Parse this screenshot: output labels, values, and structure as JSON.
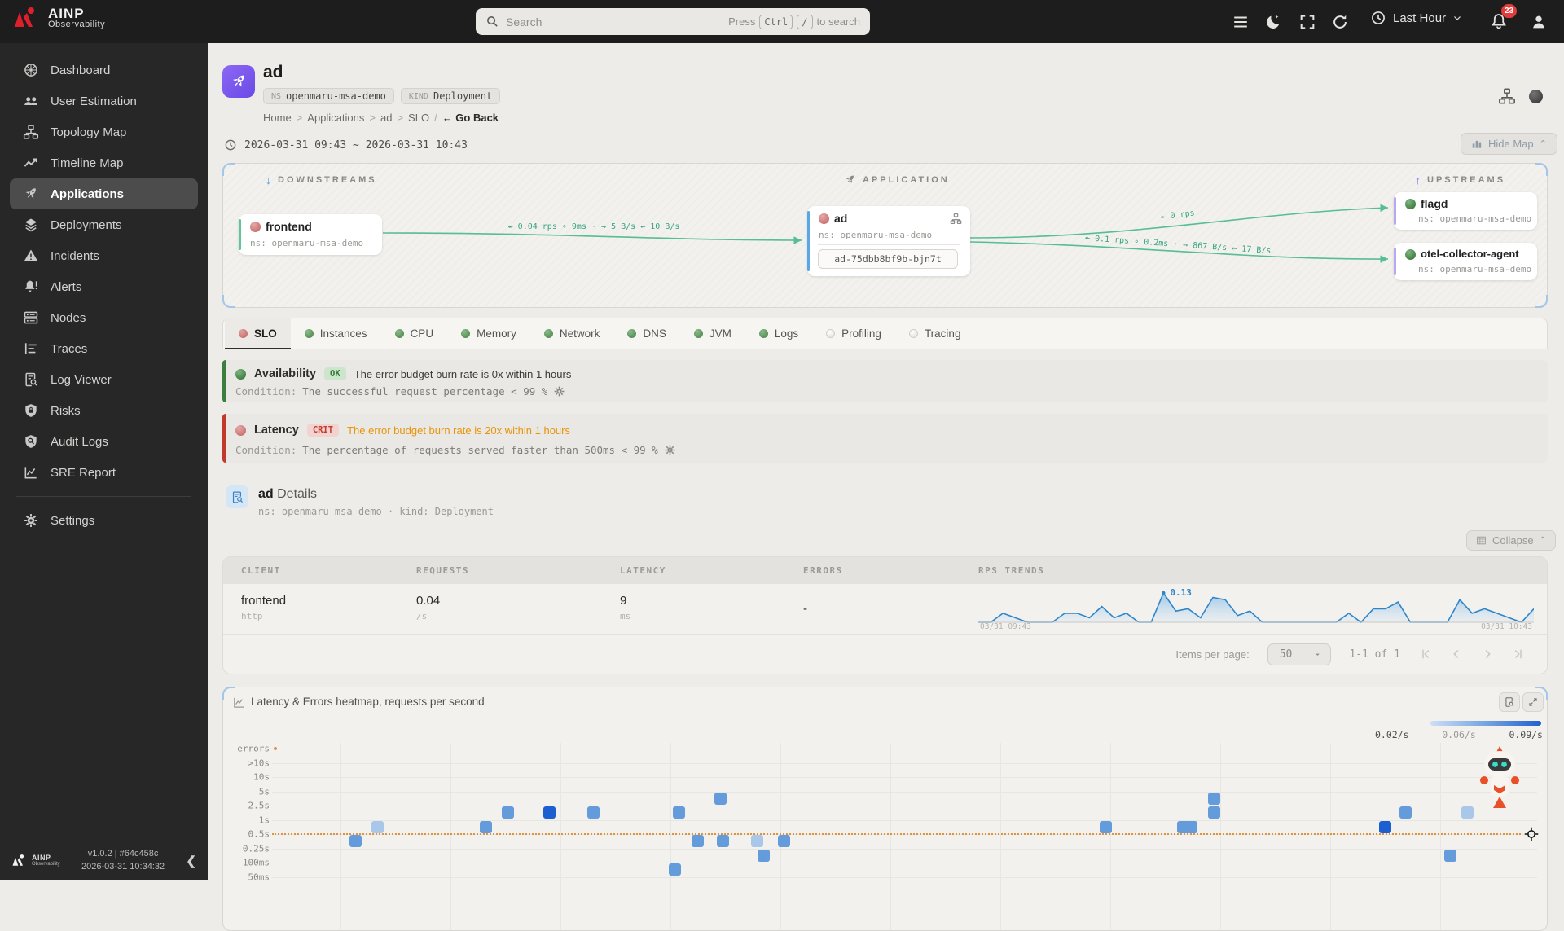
{
  "topbar": {
    "brand_line1": "AINP",
    "brand_line2": "Observability",
    "search_placeholder": "Search",
    "search_hint_prefix": "Press",
    "search_key1": "Ctrl",
    "search_key2": "/",
    "search_hint_suffix": "to search",
    "time_range_label": "Last Hour",
    "notification_count": "23"
  },
  "sidebar": {
    "items": [
      {
        "label": "Dashboard",
        "icon": "dashboard",
        "active": false
      },
      {
        "label": "User Estimation",
        "icon": "users",
        "active": false
      },
      {
        "label": "Topology Map",
        "icon": "sitemap",
        "active": false
      },
      {
        "label": "Timeline Map",
        "icon": "trend",
        "active": false
      },
      {
        "label": "Applications",
        "icon": "rocket",
        "active": true
      },
      {
        "label": "Deployments",
        "icon": "layers",
        "active": false
      },
      {
        "label": "Incidents",
        "icon": "warning",
        "active": false
      },
      {
        "label": "Alerts",
        "icon": "bellalert",
        "active": false
      },
      {
        "label": "Nodes",
        "icon": "server",
        "active": false
      },
      {
        "label": "Traces",
        "icon": "traces",
        "active": false
      },
      {
        "label": "Log Viewer",
        "icon": "docsearch",
        "active": false
      },
      {
        "label": "Risks",
        "icon": "shieldlock",
        "active": false
      },
      {
        "label": "Audit Logs",
        "icon": "shieldsearch",
        "active": false
      },
      {
        "label": "SRE Report",
        "icon": "chart",
        "active": false
      },
      {
        "label": "Settings",
        "icon": "gear",
        "active": false,
        "divider_before": true
      }
    ],
    "footer": {
      "brand_line1": "AINP",
      "brand_line2": "Observability",
      "version": "v1.0.2 | #64c458c",
      "timestamp": "2026-03-31 10:34:32"
    }
  },
  "header": {
    "title": "ad",
    "ns_label": "NS",
    "ns_value": "openmaru-msa-demo",
    "kind_label": "KIND",
    "kind_value": "Deployment",
    "breadcrumb": [
      "Home",
      "Applications",
      "ad",
      "SLO"
    ],
    "go_back": "← Go Back",
    "date_range": "2026-03-31 09:43 ~ 2026-03-31 10:43",
    "hide_map_label": "Hide Map"
  },
  "topology": {
    "downstreams_label": "DOWNSTREAMS",
    "application_label": "APPLICATION",
    "upstreams_label": "UPSTREAMS",
    "nodes": {
      "frontend": {
        "name": "frontend",
        "ns": "ns: openmaru-msa-demo",
        "status": "red"
      },
      "ad": {
        "name": "ad",
        "ns": "ns: openmaru-msa-demo",
        "pod": "ad-75dbb8bf9b-bjn7t",
        "status": "red"
      },
      "flagd": {
        "name": "flagd",
        "ns": "ns: openmaru-msa-demo",
        "status": "green"
      },
      "otel": {
        "name": "otel-collector-agent",
        "ns": "ns: openmaru-msa-demo",
        "status": "green"
      }
    },
    "edges": {
      "frontend_ad": "↞ 0.04 rps ∘ 9ms · → 5 B/s ← 10 B/s",
      "ad_flagd": "↞ 0 rps",
      "ad_otel": "↞ 0.1 rps ∘ 0.2ms · → 867 B/s ← 17 B/s"
    }
  },
  "tabs": [
    {
      "label": "SLO",
      "dot": "red",
      "active": true
    },
    {
      "label": "Instances",
      "dot": "green",
      "active": false
    },
    {
      "label": "CPU",
      "dot": "green",
      "active": false
    },
    {
      "label": "Memory",
      "dot": "green",
      "active": false
    },
    {
      "label": "Network",
      "dot": "green",
      "active": false
    },
    {
      "label": "DNS",
      "dot": "green",
      "active": false
    },
    {
      "label": "JVM",
      "dot": "green",
      "active": false
    },
    {
      "label": "Logs",
      "dot": "green",
      "active": false
    },
    {
      "label": "Profiling",
      "dot": "gray",
      "active": false
    },
    {
      "label": "Tracing",
      "dot": "gray",
      "active": false
    }
  ],
  "slo": {
    "availability": {
      "title": "Availability",
      "badge": "OK",
      "message": "The error budget burn rate is 0x within 1 hours",
      "condition_label": "Condition:",
      "condition": "The successful request percentage < 99 %"
    },
    "latency": {
      "title": "Latency",
      "badge": "CRIT",
      "message": "The error budget burn rate is 20x within 1 hours",
      "condition_label": "Condition:",
      "condition": "The percentage of requests served faster than 500ms < 99 %"
    }
  },
  "details": {
    "title_bold": "ad",
    "title_rest": "Details",
    "subtitle": "ns: openmaru-msa-demo · kind: Deployment",
    "collapse_label": "Collapse"
  },
  "table": {
    "columns": [
      "CLIENT",
      "REQUESTS",
      "LATENCY",
      "ERRORS",
      "RPS TRENDS"
    ],
    "rows": [
      {
        "client": "frontend",
        "client_sub": "http",
        "requests": "0.04",
        "requests_unit": "/s",
        "latency": "9",
        "latency_unit": "ms",
        "errors": "-"
      }
    ]
  },
  "pagination": {
    "items_per_page_label": "Items per page:",
    "items_per_page_value": "50",
    "range_label": "1-1 of 1"
  },
  "colors": {
    "accent_teal": "#5fc39b",
    "status_red": "#c96f6f",
    "status_green": "#3f8142",
    "crit_red": "#c33c2e",
    "warn_orange": "#e8940c",
    "heat_light": "#a9c7e8",
    "heat_med": "#639bdb",
    "heat_dark": "#1b5fd0",
    "brand_red": "#e01f2d",
    "purple": "#7c5cf0"
  },
  "chart_data": [
    {
      "id": "rps_trends_sparkline",
      "type": "area",
      "title": "RPS TRENDS",
      "series_label": "requests per second",
      "x_start_label": "03/31 09:43",
      "x_end_label": "03/31 10:43",
      "ylim": [
        0,
        0.13
      ],
      "peak_value": 0.13,
      "peak_label": "0.13",
      "values": [
        0,
        0,
        0.04,
        0.02,
        0,
        0,
        0,
        0.04,
        0.04,
        0.02,
        0.07,
        0.02,
        0.04,
        0,
        0,
        0.13,
        0.05,
        0.06,
        0.02,
        0.11,
        0.1,
        0.03,
        0.05,
        0,
        0,
        0,
        0,
        0,
        0,
        0,
        0.04,
        0,
        0.06,
        0.06,
        0.09,
        0,
        0,
        0,
        0,
        0.1,
        0.04,
        0.06,
        0.04,
        0.02,
        0,
        0.06
      ]
    },
    {
      "id": "latency_errors_heatmap",
      "type": "heatmap",
      "title": "Latency & Errors heatmap, requests per second",
      "y_categories": [
        "errors",
        ">10s",
        "10s",
        "5s",
        "2.5s",
        "1s",
        "0.5s",
        "0.25s",
        "100ms",
        "50ms"
      ],
      "legend_ticks": [
        "0.02/s",
        "0.06/s",
        "0.09/s"
      ],
      "threshold_row": "0.5s",
      "intensity_scale": {
        "light": 0.02,
        "med": 0.06,
        "dark": 0.09
      },
      "cells": [
        {
          "x": 0.066,
          "band": "0.25s",
          "v": "med"
        },
        {
          "x": 0.083,
          "band": "0.5s",
          "v": "light"
        },
        {
          "x": 0.169,
          "band": "0.5s",
          "v": "med"
        },
        {
          "x": 0.186,
          "band": "1s",
          "v": "med"
        },
        {
          "x": 0.219,
          "band": "1s",
          "v": "dark"
        },
        {
          "x": 0.254,
          "band": "1s",
          "v": "med"
        },
        {
          "x": 0.318,
          "band": "50ms",
          "v": "med"
        },
        {
          "x": 0.321,
          "band": "1s",
          "v": "med"
        },
        {
          "x": 0.336,
          "band": "0.25s",
          "v": "med"
        },
        {
          "x": 0.354,
          "band": "2.5s",
          "v": "med"
        },
        {
          "x": 0.356,
          "band": "0.25s",
          "v": "med"
        },
        {
          "x": 0.383,
          "band": "0.25s",
          "v": "light"
        },
        {
          "x": 0.388,
          "band": "100ms",
          "v": "med"
        },
        {
          "x": 0.404,
          "band": "0.25s",
          "v": "med"
        },
        {
          "x": 0.658,
          "band": "0.5s",
          "v": "med"
        },
        {
          "x": 0.719,
          "band": "0.5s",
          "v": "med"
        },
        {
          "x": 0.726,
          "band": "0.5s",
          "v": "med"
        },
        {
          "x": 0.744,
          "band": "1s",
          "v": "med"
        },
        {
          "x": 0.744,
          "band": "2.5s",
          "v": "med"
        },
        {
          "x": 0.879,
          "band": "0.5s",
          "v": "dark"
        },
        {
          "x": 0.895,
          "band": "1s",
          "v": "med"
        },
        {
          "x": 0.93,
          "band": "100ms",
          "v": "med"
        },
        {
          "x": 0.944,
          "band": "1s",
          "v": "light"
        }
      ]
    }
  ]
}
